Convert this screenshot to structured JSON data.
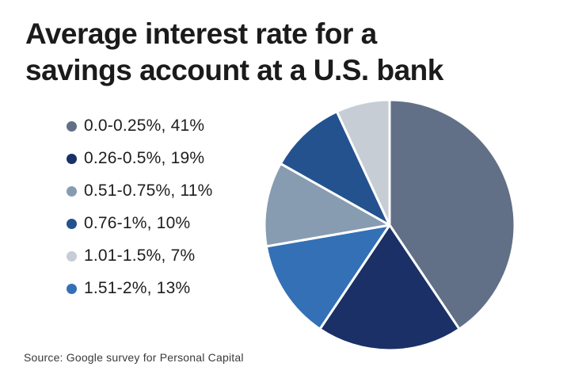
{
  "page": {
    "background_color": "#ffffff",
    "title_line1": "Average interest rate for a",
    "title_line2": "savings account at a U.S. bank",
    "source_text": "Source: Google survey for Personal Capital",
    "text_color": "#1b1b1b"
  },
  "chart_data": {
    "type": "pie",
    "title": "Average interest rate for a savings account at a U.S. bank",
    "legend_position": "left",
    "stroke_color": "#ffffff",
    "start_angle_deg": -90,
    "slices": [
      {
        "range": "0.0-0.25%",
        "value": 41,
        "legend_label": "0.0-0.25%, 41%",
        "color": "#617086"
      },
      {
        "range": "0.26-0.5%",
        "value": 19,
        "legend_label": "0.26-0.5%, 19%",
        "color": "#1a3066"
      },
      {
        "range": "0.51-0.75%",
        "value": 11,
        "legend_label": "0.51-0.75%, 11%",
        "color": "#879cb0"
      },
      {
        "range": "0.76-1%",
        "value": 10,
        "legend_label": "0.76-1%, 10%",
        "color": "#24528f"
      },
      {
        "range": "1.01-1.5%",
        "value": 7,
        "legend_label": "1.01-1.5%, 7%",
        "color": "#c6cdd4"
      },
      {
        "range": "1.51-2%",
        "value": 13,
        "legend_label": "1.51-2%, 13%",
        "color": "#3470b6"
      }
    ],
    "clockwise_order": [
      0,
      1,
      5,
      2,
      3,
      4
    ]
  }
}
